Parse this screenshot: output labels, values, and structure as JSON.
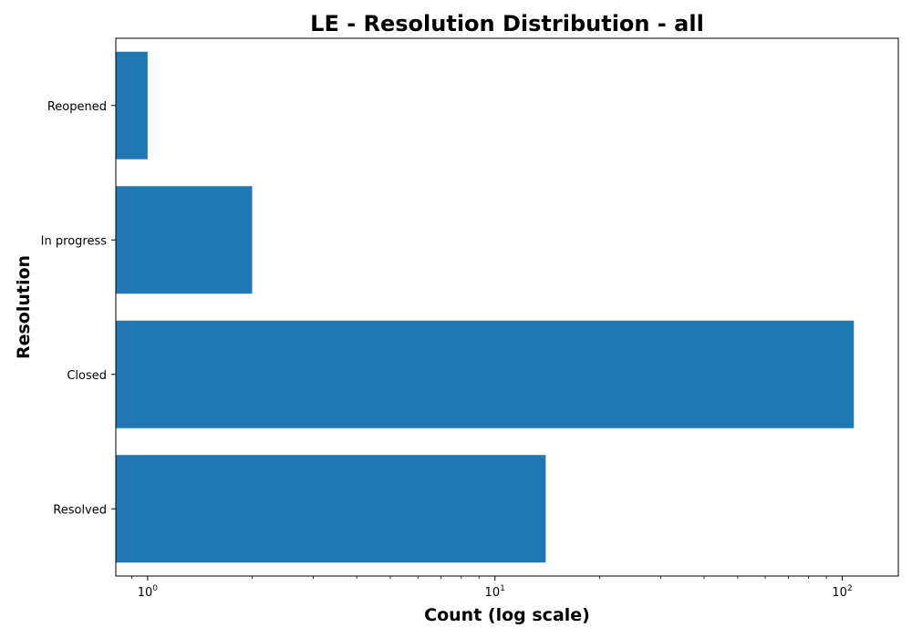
{
  "chart_data": {
    "type": "bar",
    "orientation": "horizontal",
    "title": "LE - Resolution Distribution - all",
    "xlabel": "Count (log scale)",
    "ylabel": "Resolution",
    "x_scale": "log",
    "xlim": [
      0.81,
      145
    ],
    "x_ticks": [
      {
        "value": 1,
        "base": "10",
        "exp": "0"
      },
      {
        "value": 10,
        "base": "10",
        "exp": "1"
      },
      {
        "value": 100,
        "base": "10",
        "exp": "2"
      }
    ],
    "categories": [
      "Resolved",
      "Closed",
      "In progress",
      "Reopened"
    ],
    "values": [
      14,
      108,
      2,
      1
    ],
    "bar_color": "#1f77b4",
    "grid": false,
    "legend": "none"
  }
}
